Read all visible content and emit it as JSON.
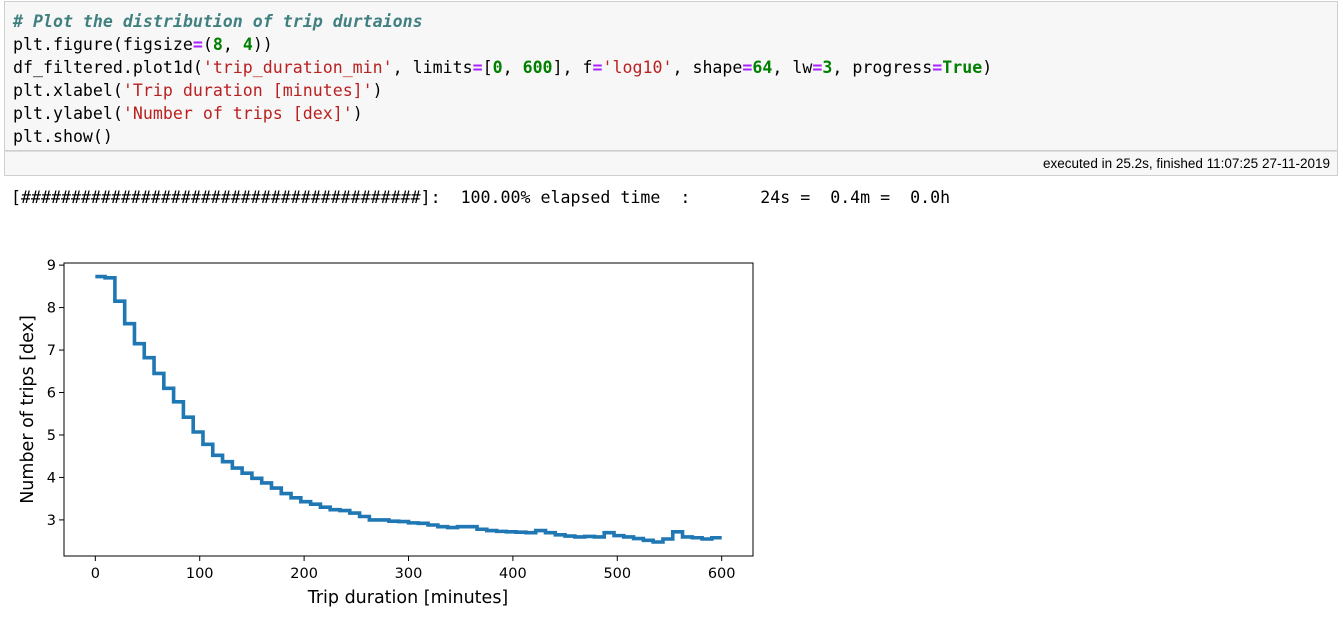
{
  "code_cell": {
    "lines": [
      [
        {
          "t": "# Plot the distribution of trip durtaions",
          "c": "cm"
        }
      ],
      [
        {
          "t": "plt.figure(figsize"
        },
        {
          "t": "=",
          "c": "op"
        },
        {
          "t": "("
        },
        {
          "t": "8",
          "c": "nu"
        },
        {
          "t": ", "
        },
        {
          "t": "4",
          "c": "nu"
        },
        {
          "t": "))"
        }
      ],
      [
        {
          "t": "df_filtered.plot1d("
        },
        {
          "t": "'trip_duration_min'",
          "c": "st"
        },
        {
          "t": ", limits"
        },
        {
          "t": "=",
          "c": "op"
        },
        {
          "t": "["
        },
        {
          "t": "0",
          "c": "nu"
        },
        {
          "t": ", "
        },
        {
          "t": "600",
          "c": "nu"
        },
        {
          "t": "], f"
        },
        {
          "t": "=",
          "c": "op"
        },
        {
          "t": "'log10'",
          "c": "st"
        },
        {
          "t": ", shape"
        },
        {
          "t": "=",
          "c": "op"
        },
        {
          "t": "64",
          "c": "nu"
        },
        {
          "t": ", lw"
        },
        {
          "t": "=",
          "c": "op"
        },
        {
          "t": "3",
          "c": "nu"
        },
        {
          "t": ", progress"
        },
        {
          "t": "=",
          "c": "op"
        },
        {
          "t": "True",
          "c": "kw"
        },
        {
          "t": ")"
        }
      ],
      [
        {
          "t": "plt.xlabel("
        },
        {
          "t": "'Trip duration [minutes]'",
          "c": "st"
        },
        {
          "t": ")"
        }
      ],
      [
        {
          "t": "plt.ylabel("
        },
        {
          "t": "'Number of trips [dex]'",
          "c": "st"
        },
        {
          "t": ")"
        }
      ],
      [
        {
          "t": "plt.show()"
        }
      ]
    ]
  },
  "execution": {
    "status_text": "executed in 25.2s, finished 11:07:25 27-11-2019"
  },
  "output": {
    "progress_text": "[########################################]:  100.00% elapsed time  :       24s =  0.4m =  0.0h"
  },
  "colors": {
    "line": "#1f77b4",
    "comment": "#408080",
    "string": "#ba2121",
    "number": "#008000",
    "operator": "#aa22ff"
  },
  "chart_data": {
    "type": "line",
    "step": true,
    "xlabel": "Trip duration [minutes]",
    "ylabel": "Number of trips [dex]",
    "xlim": [
      -30,
      630
    ],
    "ylim": [
      2.15,
      9.05
    ],
    "xticks": [
      0,
      100,
      200,
      300,
      400,
      500,
      600
    ],
    "yticks": [
      3,
      4,
      5,
      6,
      7,
      8,
      9
    ],
    "bin_edges_start": 0,
    "bin_width": 9.375,
    "series": [
      {
        "values": [
          8.73,
          8.7,
          8.15,
          7.62,
          7.15,
          6.82,
          6.45,
          6.1,
          5.78,
          5.42,
          5.07,
          4.78,
          4.52,
          4.37,
          4.22,
          4.1,
          3.98,
          3.87,
          3.75,
          3.62,
          3.52,
          3.43,
          3.37,
          3.3,
          3.24,
          3.22,
          3.16,
          3.08,
          3.0,
          3.0,
          2.97,
          2.96,
          2.93,
          2.92,
          2.88,
          2.84,
          2.82,
          2.84,
          2.84,
          2.78,
          2.75,
          2.73,
          2.72,
          2.71,
          2.7,
          2.75,
          2.7,
          2.65,
          2.62,
          2.6,
          2.61,
          2.6,
          2.7,
          2.63,
          2.6,
          2.56,
          2.52,
          2.48,
          2.55,
          2.72,
          2.6,
          2.58,
          2.55,
          2.58
        ]
      }
    ]
  }
}
